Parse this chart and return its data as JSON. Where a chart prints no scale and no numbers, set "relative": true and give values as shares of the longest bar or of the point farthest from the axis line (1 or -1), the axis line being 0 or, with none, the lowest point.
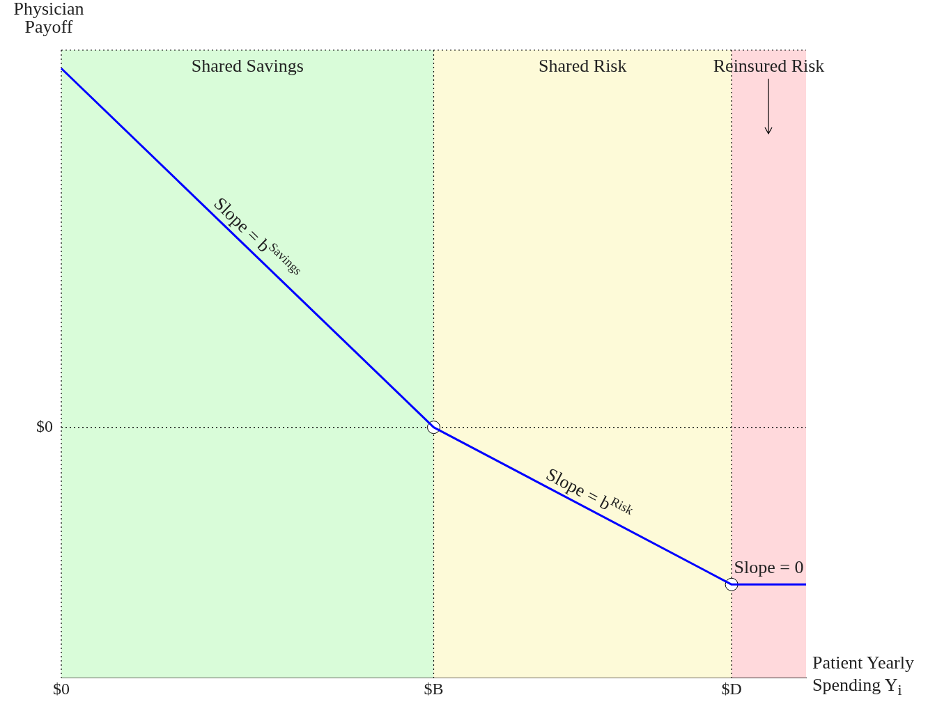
{
  "chart_data": {
    "type": "line",
    "relative": true,
    "xlabel": "Patient Yearly Spending Y$_{i}$",
    "ylabel": "Physician Payoff",
    "categories": [
      "$0",
      null,
      null,
      null,
      null,
      "$B",
      null,
      null,
      null,
      "$D",
      null
    ],
    "series": [
      {
        "color": "#0000ff",
        "marker": "none",
        "values": [
          1,
          null,
          null,
          null,
          null,
          0.411,
          null,
          null,
          null,
          0.153,
          0.153
        ]
      },
      {
        "type": "scatter",
        "color": "#ffffff",
        "marker": "circle",
        "values": [
          null,
          null,
          null,
          null,
          null,
          0.411,
          null,
          null,
          null,
          0.153,
          null
        ]
      }
    ],
    "bands": [
      {
        "axis": "x",
        "from": "$0",
        "to": "$B",
        "label": "Shared Savings",
        "color": "#d9fcd9"
      },
      {
        "axis": "x",
        "from": "$B",
        "to": "$D",
        "label": "Shared Risk",
        "color": "#fdfad8"
      }
    ],
    "ref_lines": [
      {
        "axis": "y",
        "value": 0.411,
        "label": "$0",
        "line_style": "dotted"
      }
    ],
    "annotations": [
      "Slope = b$^{Savings}$",
      "Slope = b$^{Risk}$",
      "Slope = 0",
      "Reinsured Risk"
    ],
    "grid": "x",
    "legend": false
  }
}
